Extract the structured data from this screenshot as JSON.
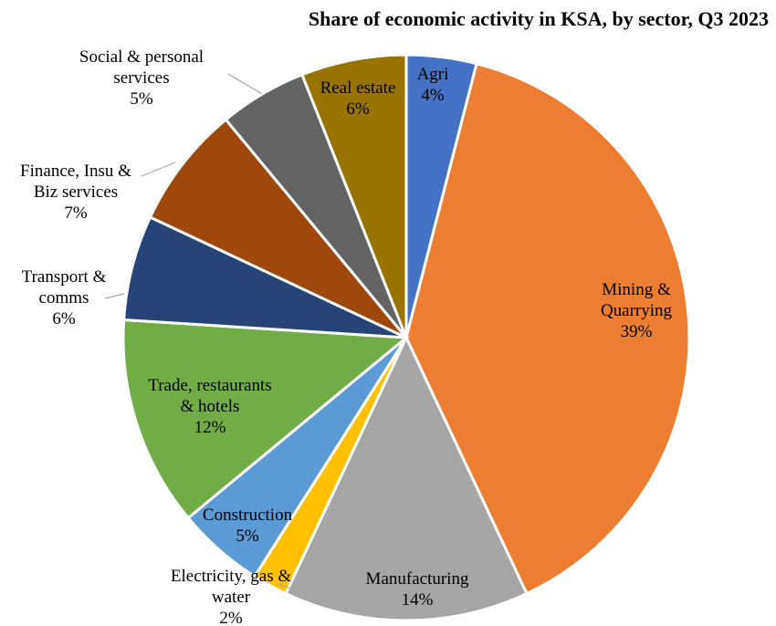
{
  "chart_data": {
    "type": "pie",
    "title": "Share of economic activity in KSA, by sector, Q3 2023",
    "slices": [
      {
        "label": "Agri",
        "value": 4,
        "pct_text": "4%",
        "color": "#4472C4"
      },
      {
        "label": "Mining & Quarrying",
        "value": 39,
        "pct_text": "39%",
        "color": "#ED7D31"
      },
      {
        "label": "Manufacturing",
        "value": 14,
        "pct_text": "14%",
        "color": "#A5A5A5"
      },
      {
        "label": "Electricity, gas & water",
        "value": 2,
        "pct_text": "2%",
        "color": "#FFC000"
      },
      {
        "label": "Construction",
        "value": 5,
        "pct_text": "5%",
        "color": "#5B9BD5"
      },
      {
        "label": "Trade, restaurants & hotels",
        "value": 12,
        "pct_text": "12%",
        "color": "#70AD47"
      },
      {
        "label": "Transport & comms",
        "value": 6,
        "pct_text": "6%",
        "color": "#264478"
      },
      {
        "label": "Finance, Insu & Biz services",
        "value": 7,
        "pct_text": "7%",
        "color": "#9E480E"
      },
      {
        "label": "Social & personal services",
        "value": 5,
        "pct_text": "5%",
        "color": "#636363"
      },
      {
        "label": "Real estate",
        "value": 6,
        "pct_text": "6%",
        "color": "#997300"
      }
    ]
  }
}
